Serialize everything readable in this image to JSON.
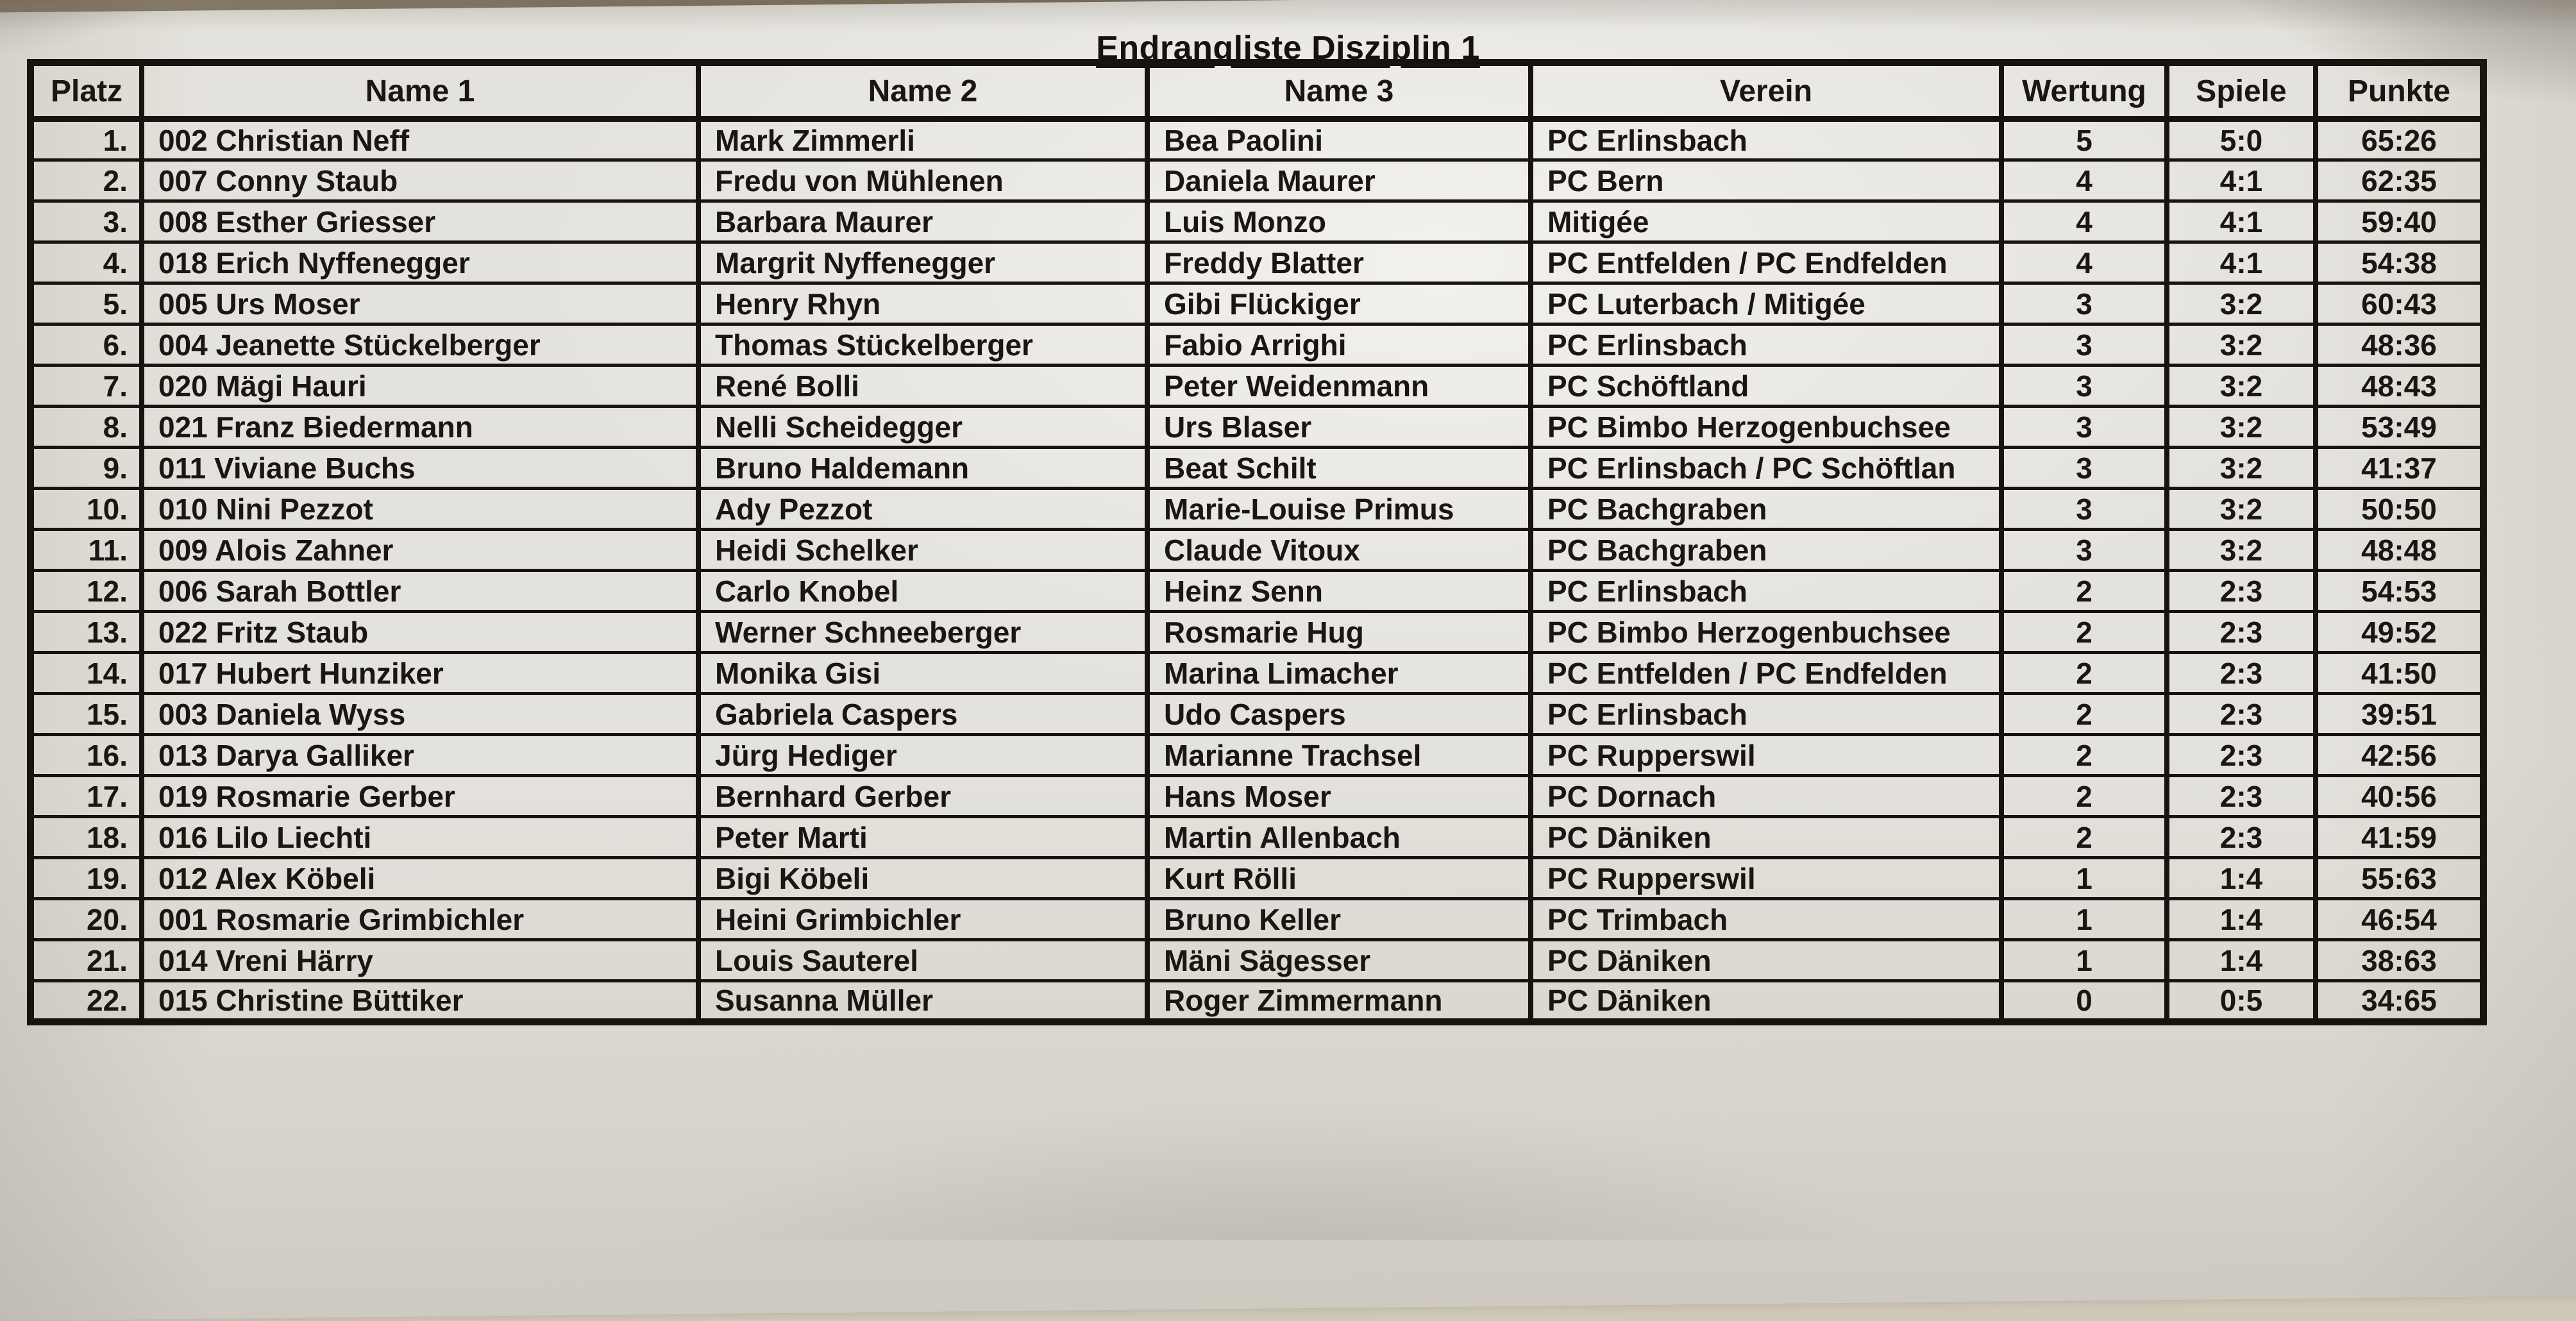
{
  "title": "Endrangliste Disziplin 1",
  "table": {
    "columns": [
      {
        "key": "platz",
        "label": "Platz"
      },
      {
        "key": "name1",
        "label": "Name 1"
      },
      {
        "key": "name2",
        "label": "Name 2"
      },
      {
        "key": "name3",
        "label": "Name 3"
      },
      {
        "key": "verein",
        "label": "Verein"
      },
      {
        "key": "wertung",
        "label": "Wertung"
      },
      {
        "key": "spiele",
        "label": "Spiele"
      },
      {
        "key": "punkte",
        "label": "Punkte"
      }
    ],
    "rows": [
      {
        "platz": "1.",
        "name1": "002 Christian Neff",
        "name2": "Mark Zimmerli",
        "name3": "Bea Paolini",
        "verein": "PC Erlinsbach",
        "wertung": "5",
        "spiele": "5:0",
        "punkte": "65:26"
      },
      {
        "platz": "2.",
        "name1": "007 Conny Staub",
        "name2": "Fredu von Mühlenen",
        "name3": "Daniela Maurer",
        "verein": "PC Bern",
        "wertung": "4",
        "spiele": "4:1",
        "punkte": "62:35"
      },
      {
        "platz": "3.",
        "name1": "008 Esther Griesser",
        "name2": "Barbara Maurer",
        "name3": "Luis Monzo",
        "verein": "Mitigée",
        "wertung": "4",
        "spiele": "4:1",
        "punkte": "59:40"
      },
      {
        "platz": "4.",
        "name1": "018 Erich Nyffenegger",
        "name2": "Margrit Nyffenegger",
        "name3": "Freddy Blatter",
        "verein": "PC Entfelden / PC Endfelden",
        "wertung": "4",
        "spiele": "4:1",
        "punkte": "54:38"
      },
      {
        "platz": "5.",
        "name1": "005 Urs Moser",
        "name2": "Henry Rhyn",
        "name3": "Gibi Flückiger",
        "verein": "PC Luterbach / Mitigée",
        "wertung": "3",
        "spiele": "3:2",
        "punkte": "60:43"
      },
      {
        "platz": "6.",
        "name1": "004 Jeanette Stückelberger",
        "name2": "Thomas Stückelberger",
        "name3": "Fabio Arrighi",
        "verein": "PC Erlinsbach",
        "wertung": "3",
        "spiele": "3:2",
        "punkte": "48:36"
      },
      {
        "platz": "7.",
        "name1": "020 Mägi Hauri",
        "name2": "René Bolli",
        "name3": "Peter Weidenmann",
        "verein": "PC Schöftland",
        "wertung": "3",
        "spiele": "3:2",
        "punkte": "48:43"
      },
      {
        "platz": "8.",
        "name1": "021 Franz Biedermann",
        "name2": "Nelli Scheidegger",
        "name3": "Urs Blaser",
        "verein": "PC Bimbo Herzogenbuchsee",
        "wertung": "3",
        "spiele": "3:2",
        "punkte": "53:49"
      },
      {
        "platz": "9.",
        "name1": "011 Viviane Buchs",
        "name2": "Bruno Haldemann",
        "name3": "Beat Schilt",
        "verein": "PC Erlinsbach / PC Schöftlan",
        "wertung": "3",
        "spiele": "3:2",
        "punkte": "41:37"
      },
      {
        "platz": "10.",
        "name1": "010 Nini Pezzot",
        "name2": "Ady Pezzot",
        "name3": "Marie-Louise Primus",
        "verein": "PC Bachgraben",
        "wertung": "3",
        "spiele": "3:2",
        "punkte": "50:50"
      },
      {
        "platz": "11.",
        "name1": "009 Alois Zahner",
        "name2": "Heidi Schelker",
        "name3": "Claude Vitoux",
        "verein": "PC Bachgraben",
        "wertung": "3",
        "spiele": "3:2",
        "punkte": "48:48"
      },
      {
        "platz": "12.",
        "name1": "006 Sarah Bottler",
        "name2": "Carlo Knobel",
        "name3": "Heinz Senn",
        "verein": "PC Erlinsbach",
        "wertung": "2",
        "spiele": "2:3",
        "punkte": "54:53"
      },
      {
        "platz": "13.",
        "name1": "022 Fritz Staub",
        "name2": "Werner Schneeberger",
        "name3": "Rosmarie Hug",
        "verein": "PC Bimbo Herzogenbuchsee",
        "wertung": "2",
        "spiele": "2:3",
        "punkte": "49:52"
      },
      {
        "platz": "14.",
        "name1": "017 Hubert Hunziker",
        "name2": "Monika Gisi",
        "name3": "Marina Limacher",
        "verein": "PC Entfelden / PC Endfelden",
        "wertung": "2",
        "spiele": "2:3",
        "punkte": "41:50"
      },
      {
        "platz": "15.",
        "name1": "003 Daniela Wyss",
        "name2": "Gabriela Caspers",
        "name3": "Udo Caspers",
        "verein": "PC Erlinsbach",
        "wertung": "2",
        "spiele": "2:3",
        "punkte": "39:51"
      },
      {
        "platz": "16.",
        "name1": "013 Darya Galliker",
        "name2": "Jürg Hediger",
        "name3": "Marianne Trachsel",
        "verein": "PC Rupperswil",
        "wertung": "2",
        "spiele": "2:3",
        "punkte": "42:56"
      },
      {
        "platz": "17.",
        "name1": "019 Rosmarie Gerber",
        "name2": "Bernhard Gerber",
        "name3": "Hans Moser",
        "verein": "PC Dornach",
        "wertung": "2",
        "spiele": "2:3",
        "punkte": "40:56"
      },
      {
        "platz": "18.",
        "name1": "016 Lilo Liechti",
        "name2": "Peter Marti",
        "name3": "Martin Allenbach",
        "verein": "PC Däniken",
        "wertung": "2",
        "spiele": "2:3",
        "punkte": "41:59"
      },
      {
        "platz": "19.",
        "name1": "012 Alex Köbeli",
        "name2": "Bigi Köbeli",
        "name3": "Kurt Rölli",
        "verein": "PC Rupperswil",
        "wertung": "1",
        "spiele": "1:4",
        "punkte": "55:63"
      },
      {
        "platz": "20.",
        "name1": "001 Rosmarie Grimbichler",
        "name2": "Heini Grimbichler",
        "name3": "Bruno Keller",
        "verein": "PC Trimbach",
        "wertung": "1",
        "spiele": "1:4",
        "punkte": "46:54"
      },
      {
        "platz": "21.",
        "name1": "014 Vreni Härry",
        "name2": "Louis Sauterel",
        "name3": "Mäni Sägesser",
        "verein": "PC Däniken",
        "wertung": "1",
        "spiele": "1:4",
        "punkte": "38:63"
      },
      {
        "platz": "22.",
        "name1": "015 Christine Büttiker",
        "name2": "Susanna Müller",
        "name3": "Roger Zimmermann",
        "verein": "PC Däniken",
        "wertung": "0",
        "spiele": "0:5",
        "punkte": "34:65"
      }
    ]
  }
}
